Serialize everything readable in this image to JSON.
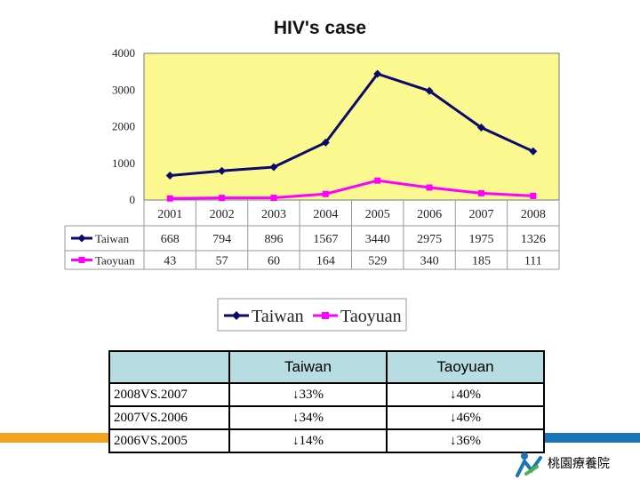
{
  "chart_data": {
    "type": "line",
    "title": "HIV's case",
    "categories": [
      "2001",
      "2002",
      "2003",
      "2004",
      "2005",
      "2006",
      "2007",
      "2008"
    ],
    "yticks": [
      "0",
      "1000",
      "2000",
      "3000",
      "4000"
    ],
    "ylim": [
      0,
      4000
    ],
    "grid": false,
    "legend_position": "bottom",
    "series": [
      {
        "name": "Taiwan",
        "color": "#0a0a6e",
        "marker": "diamond",
        "values": [
          668,
          794,
          896,
          1567,
          3440,
          2975,
          1975,
          1326
        ],
        "labels": [
          "668",
          "794",
          "896",
          "1567",
          "3440",
          "2975",
          "1975",
          "1326"
        ]
      },
      {
        "name": "Taoyuan",
        "color": "#ff00ff",
        "marker": "square",
        "values": [
          43,
          57,
          60,
          164,
          529,
          340,
          185,
          111
        ],
        "labels": [
          "43",
          "57",
          "60",
          "164",
          "529",
          "340",
          "185",
          "111"
        ]
      }
    ],
    "plot_background": "#fcf890"
  },
  "comparison_table": {
    "headers": [
      "",
      "Taiwan",
      "Taoyuan"
    ],
    "rows": [
      {
        "label": "2008VS.2007",
        "taiwan": "↓33%",
        "taoyuan": "↓40%"
      },
      {
        "label": "2007VS.2006",
        "taiwan": "↓34%",
        "taoyuan": "↓46%"
      },
      {
        "label": "2006VS.2005",
        "taiwan": "↓14%",
        "taoyuan": "↓36%"
      }
    ]
  },
  "logo": {
    "text": "桃園療養院",
    "icon": "health-department-logo-icon"
  },
  "colors": {
    "footer_orange": "#f2a21e",
    "footer_blue": "#1a75b8"
  }
}
